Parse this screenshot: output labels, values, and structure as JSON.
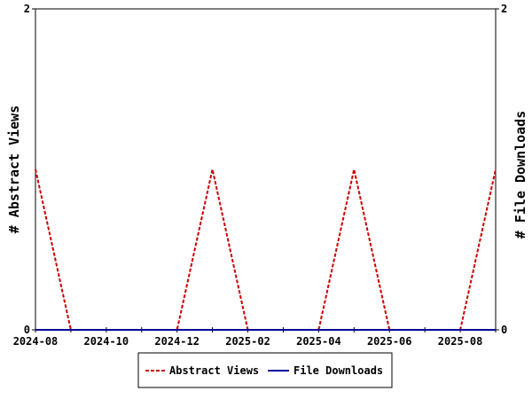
{
  "chart_data": {
    "type": "line",
    "title": "",
    "y_left_label": "# Abstract Views",
    "y_right_label": "# File Downloads",
    "x_start": "2024-08",
    "x_end": "2025-09",
    "x_tick_labels": [
      "2024-08",
      "2024-10",
      "2024-12",
      "2025-02",
      "2025-04",
      "2025-06",
      "2025-08"
    ],
    "y_left_range": [
      0,
      2
    ],
    "y_right_range": [
      0,
      2
    ],
    "y_left_ticks": [
      "0",
      "2"
    ],
    "y_right_ticks": [
      "0",
      "2"
    ],
    "grid": false,
    "legend_position": "bottom",
    "series": [
      {
        "name": "Abstract Views",
        "color": "#cc0000",
        "dash": "dashed",
        "x": [
          "2024-08",
          "2024-09",
          "2024-10",
          "2024-11",
          "2024-12",
          "2025-01",
          "2025-02",
          "2025-03",
          "2025-04",
          "2025-05",
          "2025-06",
          "2025-07",
          "2025-08",
          "2025-09"
        ],
        "values": [
          1,
          0,
          0,
          0,
          0,
          1,
          0,
          0,
          0,
          1,
          0,
          0,
          0,
          1
        ]
      },
      {
        "name": "File Downloads",
        "color": "#000099",
        "dash": "solid",
        "x": [
          "2024-08",
          "2024-09",
          "2024-10",
          "2024-11",
          "2024-12",
          "2025-01",
          "2025-02",
          "2025-03",
          "2025-04",
          "2025-05",
          "2025-06",
          "2025-07",
          "2025-08",
          "2025-09"
        ],
        "values": [
          0,
          0,
          0,
          0,
          0,
          0,
          0,
          0,
          0,
          0,
          0,
          0,
          0,
          0
        ]
      }
    ]
  }
}
